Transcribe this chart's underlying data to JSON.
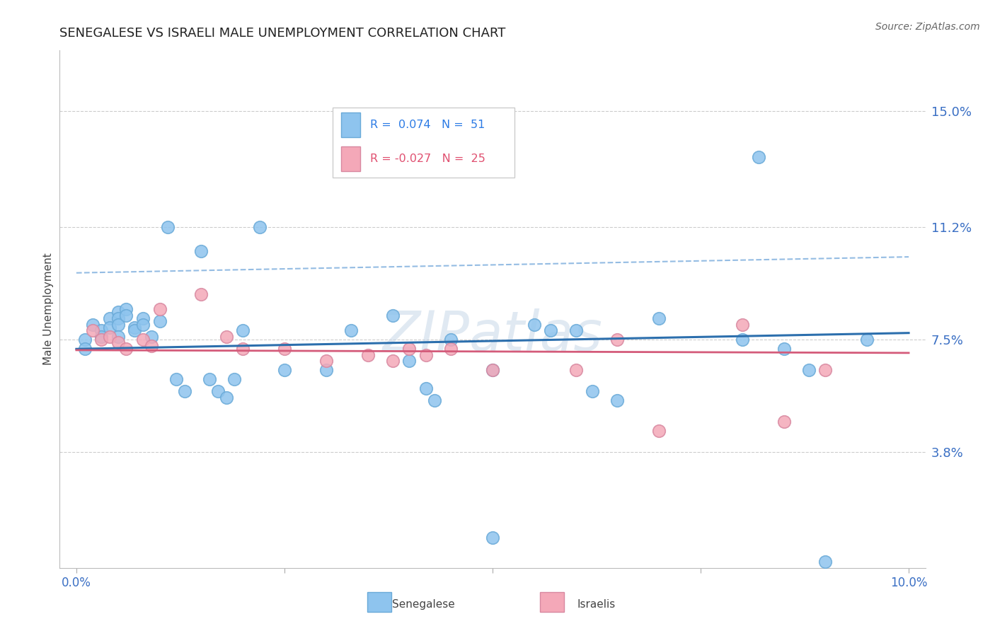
{
  "title": "SENEGALESE VS ISRAELI MALE UNEMPLOYMENT CORRELATION CHART",
  "source": "Source: ZipAtlas.com",
  "ylabel": "Male Unemployment",
  "ytick_labels": [
    "15.0%",
    "11.2%",
    "7.5%",
    "3.8%"
  ],
  "ytick_values": [
    0.15,
    0.112,
    0.075,
    0.038
  ],
  "xlim": [
    -0.002,
    0.102
  ],
  "ylim": [
    0.0,
    0.17
  ],
  "senegalese_color": "#8EC4EE",
  "senegalese_edge": "#6aaad8",
  "israeli_color": "#F4A8B8",
  "israeli_edge": "#d888a0",
  "senegalese_R": 0.074,
  "senegalese_N": 51,
  "israeli_R": -0.027,
  "israeli_N": 25,
  "trend_blue_color": "#2c6fad",
  "trend_pink_color": "#d45b7a",
  "trend_blue_dash_color": "#7aacdc",
  "watermark": "ZIPatlas",
  "legend_R1_color": "#2c7be5",
  "legend_N1_color": "#2c7be5",
  "legend_R2_color": "#e05070",
  "legend_N2_color": "#e05070",
  "senegalese_x": [
    0.001,
    0.001,
    0.002,
    0.003,
    0.003,
    0.004,
    0.004,
    0.005,
    0.005,
    0.005,
    0.005,
    0.006,
    0.006,
    0.007,
    0.007,
    0.008,
    0.008,
    0.009,
    0.01,
    0.011,
    0.012,
    0.013,
    0.015,
    0.016,
    0.017,
    0.018,
    0.019,
    0.02,
    0.022,
    0.025,
    0.03,
    0.033,
    0.038,
    0.04,
    0.042,
    0.043,
    0.045,
    0.05,
    0.055,
    0.057,
    0.06,
    0.062,
    0.065,
    0.07,
    0.08,
    0.082,
    0.085,
    0.088,
    0.09,
    0.095,
    0.05
  ],
  "senegalese_y": [
    0.075,
    0.072,
    0.08,
    0.078,
    0.076,
    0.082,
    0.079,
    0.084,
    0.082,
    0.08,
    0.076,
    0.085,
    0.083,
    0.079,
    0.078,
    0.082,
    0.08,
    0.076,
    0.081,
    0.112,
    0.062,
    0.058,
    0.104,
    0.062,
    0.058,
    0.056,
    0.062,
    0.078,
    0.112,
    0.065,
    0.065,
    0.078,
    0.083,
    0.068,
    0.059,
    0.055,
    0.075,
    0.065,
    0.08,
    0.078,
    0.078,
    0.058,
    0.055,
    0.082,
    0.075,
    0.135,
    0.072,
    0.065,
    0.002,
    0.075,
    0.01
  ],
  "israeli_x": [
    0.002,
    0.003,
    0.004,
    0.005,
    0.006,
    0.008,
    0.009,
    0.01,
    0.015,
    0.018,
    0.02,
    0.025,
    0.03,
    0.035,
    0.038,
    0.04,
    0.042,
    0.045,
    0.05,
    0.06,
    0.065,
    0.07,
    0.08,
    0.085,
    0.09
  ],
  "israeli_y": [
    0.078,
    0.075,
    0.076,
    0.074,
    0.072,
    0.075,
    0.073,
    0.085,
    0.09,
    0.076,
    0.072,
    0.072,
    0.068,
    0.07,
    0.068,
    0.072,
    0.07,
    0.072,
    0.065,
    0.065,
    0.075,
    0.045,
    0.08,
    0.048,
    0.065
  ]
}
